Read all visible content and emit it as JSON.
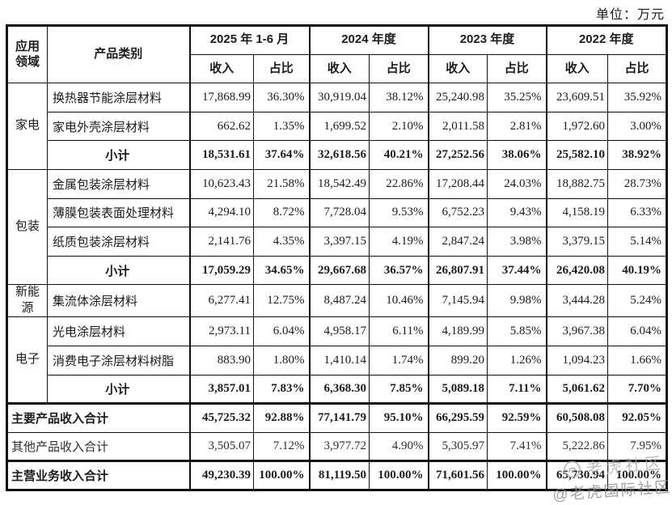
{
  "unit_label": "单位：万元",
  "table": {
    "header": {
      "application_area": "应用领域",
      "product_category": "产品类别",
      "periods": [
        "2025 年 1-6 月",
        "2024 年度",
        "2023 年度",
        "2022 年度"
      ],
      "revenue_label": "收入",
      "share_label": "占比"
    },
    "rows": [
      {
        "area": "家电",
        "area_rowspan": 3,
        "category": "换热器节能涂层材料",
        "type": "product",
        "values": [
          "17,868.99",
          "36.30%",
          "30,919.04",
          "38.12%",
          "25,240.98",
          "35.25%",
          "23,609.51",
          "35.92%"
        ]
      },
      {
        "category": "家电外壳涂层材料",
        "type": "product",
        "values": [
          "662.62",
          "1.35%",
          "1,699.52",
          "2.10%",
          "2,011.58",
          "2.81%",
          "1,972.60",
          "3.00%"
        ]
      },
      {
        "category": "小计",
        "type": "subtotal",
        "values": [
          "18,531.61",
          "37.64%",
          "32,618.56",
          "40.21%",
          "27,252.56",
          "38.06%",
          "25,582.10",
          "38.92%"
        ]
      },
      {
        "area": "包装",
        "area_rowspan": 4,
        "category": "金属包装涂层材料",
        "type": "product",
        "values": [
          "10,623.43",
          "21.58%",
          "18,542.49",
          "22.86%",
          "17,208.44",
          "24.03%",
          "18,882.75",
          "28.73%"
        ]
      },
      {
        "category": "薄膜包装表面处理材料",
        "type": "product",
        "values": [
          "4,294.10",
          "8.72%",
          "7,728.04",
          "9.53%",
          "6,752.23",
          "9.43%",
          "4,158.19",
          "6.33%"
        ]
      },
      {
        "category": "纸质包装涂层材料",
        "type": "product",
        "values": [
          "2,141.76",
          "4.35%",
          "3,397.15",
          "4.19%",
          "2,847.24",
          "3.98%",
          "3,379.15",
          "5.14%"
        ]
      },
      {
        "category": "小计",
        "type": "subtotal",
        "values": [
          "17,059.29",
          "34.65%",
          "29,667.68",
          "36.57%",
          "26,807.91",
          "37.44%",
          "26,420.08",
          "40.19%"
        ]
      },
      {
        "area": "新能源",
        "area_rowspan": 1,
        "category": "集流体涂层材料",
        "type": "product",
        "values": [
          "6,277.41",
          "12.75%",
          "8,487.24",
          "10.46%",
          "7,145.94",
          "9.98%",
          "3,444.28",
          "5.24%"
        ]
      },
      {
        "area": "电子",
        "area_rowspan": 3,
        "category": "光电涂层材料",
        "type": "product",
        "values": [
          "2,973.11",
          "6.04%",
          "4,958.17",
          "6.11%",
          "4,189.99",
          "5.85%",
          "3,967.38",
          "6.04%"
        ]
      },
      {
        "category": "消费电子涂层材料树脂",
        "type": "product",
        "values": [
          "883.90",
          "1.80%",
          "1,410.14",
          "1.74%",
          "899.20",
          "1.26%",
          "1,094.23",
          "1.66%"
        ]
      },
      {
        "category": "小计",
        "type": "subtotal",
        "values": [
          "3,857.01",
          "7.83%",
          "6,368.30",
          "7.85%",
          "5,089.18",
          "7.11%",
          "5,061.62",
          "7.70%"
        ]
      },
      {
        "category": "主要产品收入合计",
        "type": "total",
        "label_colspan": 2,
        "thick_top": true,
        "values": [
          "45,725.32",
          "92.88%",
          "77,141.79",
          "95.10%",
          "66,295.59",
          "92.59%",
          "60,508.08",
          "92.05%"
        ]
      },
      {
        "category": "其他产品收入合计",
        "type": "other_total",
        "label_colspan": 2,
        "values": [
          "3,505.07",
          "7.12%",
          "3,977.72",
          "4.90%",
          "5,305.97",
          "7.41%",
          "5,222.86",
          "7.95%"
        ]
      },
      {
        "category": "主营业务收入合计",
        "type": "total",
        "label_colspan": 2,
        "thick_top": true,
        "values": [
          "49,230.39",
          "100.00%",
          "81,119.50",
          "100.00%",
          "71,601.56",
          "100.00%",
          "65,730.94",
          "100.00%"
        ]
      }
    ]
  },
  "watermark": {
    "logo": "tiger-community-logo",
    "line1": "老虎社区",
    "line2": "@老虎国际社区"
  }
}
